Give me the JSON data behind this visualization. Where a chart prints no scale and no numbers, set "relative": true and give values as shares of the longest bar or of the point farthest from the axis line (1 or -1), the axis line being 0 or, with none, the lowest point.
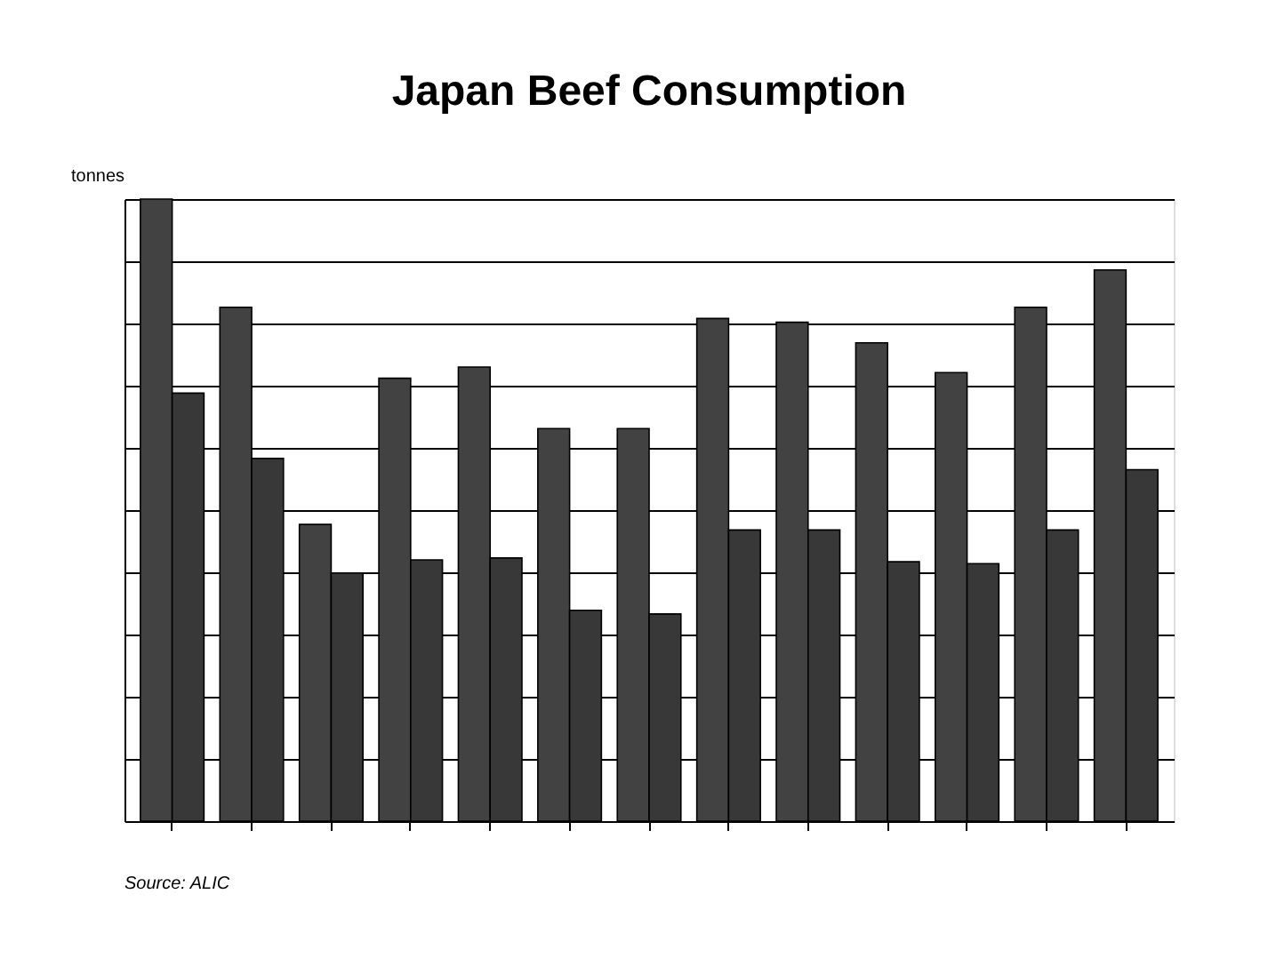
{
  "chart_data": {
    "type": "bar",
    "title": "Japan Beef Consumption",
    "ylabel": "tonnes",
    "relative": true,
    "grid": "y",
    "categories": [
      null,
      null,
      null,
      null,
      null,
      null,
      null,
      null,
      null,
      null,
      null,
      null,
      null
    ],
    "series": [
      {
        "color": "#424242",
        "values": [
          1,
          0.826,
          0.477,
          0.712,
          0.73,
          0.631,
          0.631,
          0.808,
          0.802,
          0.769,
          0.721,
          0.826,
          0.886
        ]
      },
      {
        "color": "#383838",
        "values": [
          0.688,
          0.583,
          0.399,
          0.42,
          0.423,
          0.339,
          0.333,
          0.468,
          0.468,
          0.417,
          0.414,
          0.468,
          0.565
        ]
      }
    ],
    "annotations": [
      "Source:  ALIC"
    ]
  }
}
